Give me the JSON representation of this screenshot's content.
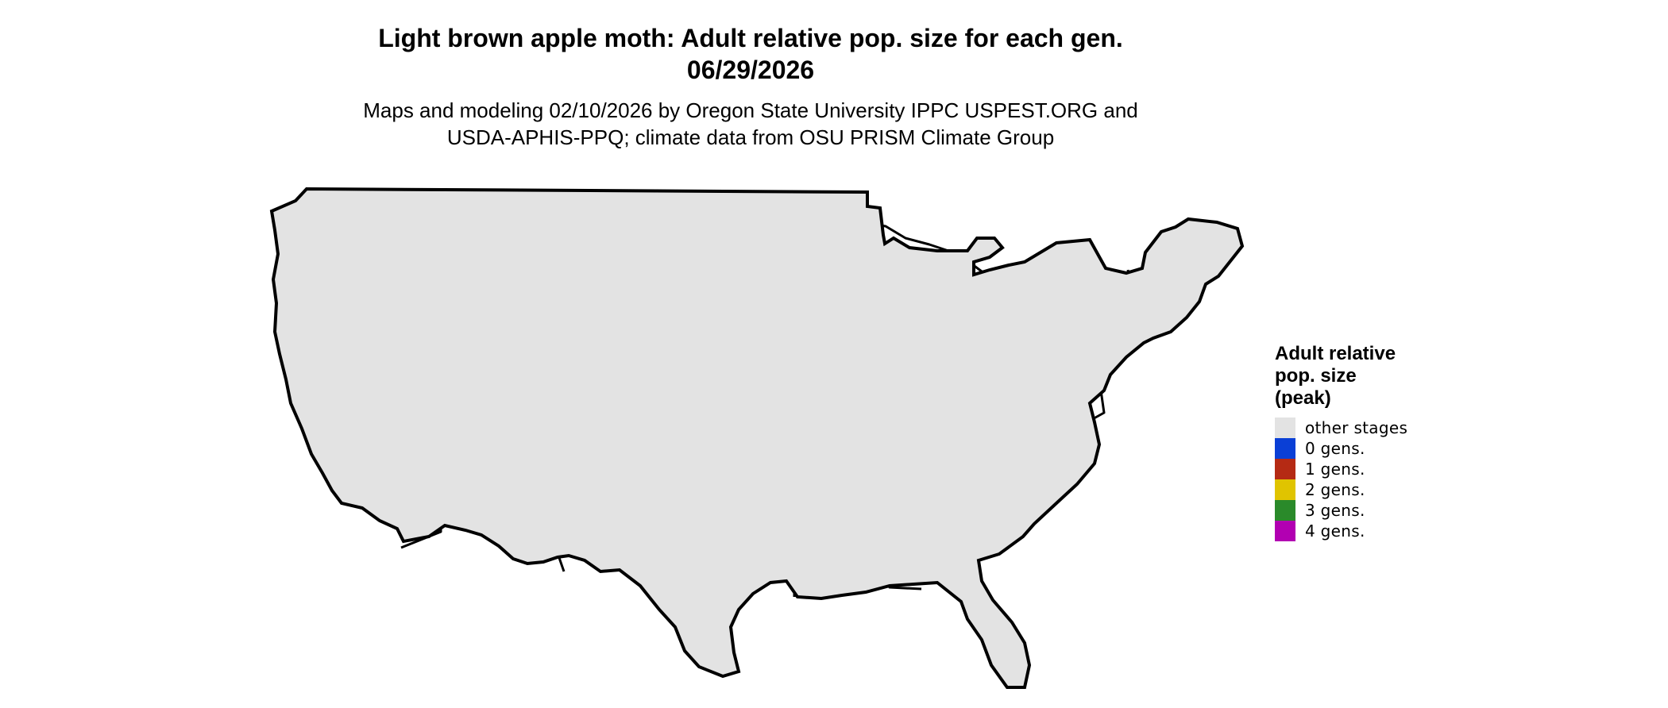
{
  "title": {
    "line1": "Light brown apple moth: Adult relative pop. size for each gen.",
    "line2": "06/29/2026"
  },
  "subtitle": {
    "line1": "Maps and modeling 02/10/2026 by Oregon State University IPPC USPEST.ORG and",
    "line2": "USDA-APHIS-PPQ; climate data from OSU PRISM Climate Group"
  },
  "legend": {
    "title_line1": "Adult relative",
    "title_line2": "pop. size",
    "title_line3": "(peak)",
    "items": [
      {
        "label": "other stages",
        "color": "#e3e3e3"
      },
      {
        "label": "0 gens.",
        "color": "#0a3fd6"
      },
      {
        "label": "1 gens.",
        "color": "#b52a14"
      },
      {
        "label": "2 gens.",
        "color": "#e0c400"
      },
      {
        "label": "3 gens.",
        "color": "#2a8a2a"
      },
      {
        "label": "4 gens.",
        "color": "#b200b2"
      }
    ]
  },
  "map": {
    "base_color": "#e3e3e3",
    "colors": {
      "gen0_dark": "#0a52d8",
      "gen0_light": "#19b4f2",
      "gen1": "#e83c0a",
      "gen2": "#f4ee00",
      "gen3": "#3aa83a",
      "gen3_light": "#7fd87f",
      "gen4": "#c800c8",
      "border": "#000000"
    }
  }
}
